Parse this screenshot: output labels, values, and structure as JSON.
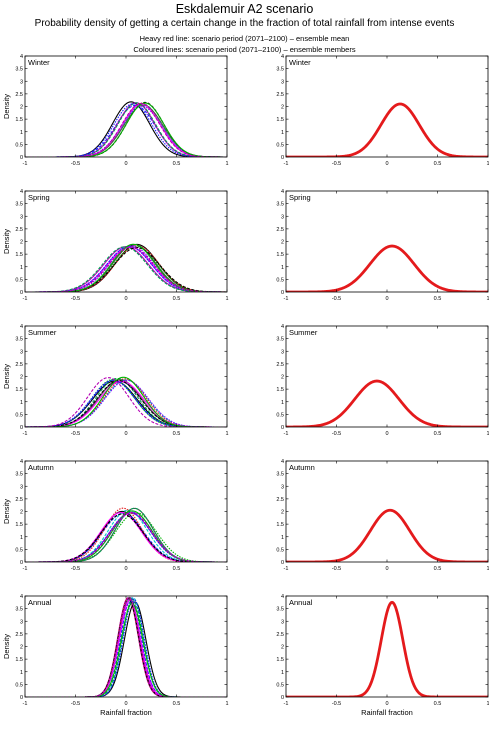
{
  "header": {
    "title": "Eskdalemuir A2 scenario",
    "subtitle": "Probability density of getting a certain change in the fraction of total rainfall from intense events",
    "note_mean": "Heavy red line: scenario period (2071–2100) – ensemble mean",
    "note_members": "Coloured lines: scenario period (2071–2100) – ensemble members"
  },
  "colors": {
    "mean": "#e41a1c",
    "members": [
      "#000000",
      "#1a1aff",
      "#00b400",
      "#b400b4",
      "#00c8c8",
      "#e41a1c",
      "#505050",
      "#00a050",
      "#7f00ff",
      "#ff00ff"
    ]
  },
  "chart_data": [
    {
      "type": "line",
      "panel": "ensemble-members",
      "season": "Winter",
      "ylabel": "Density",
      "xlabel": "",
      "xlim": [
        -1,
        1
      ],
      "ylim": [
        0,
        4
      ],
      "xticks": [
        "-1",
        "-0.5",
        "0",
        "0.5",
        "1"
      ],
      "yticks": [
        "0",
        "0.5",
        "1",
        "1.5",
        "2",
        "2.5",
        "3",
        "3.5",
        "4"
      ],
      "member_peak_x_range": [
        0.05,
        0.2
      ],
      "member_peak_density_range": [
        2.0,
        2.2
      ]
    },
    {
      "type": "line",
      "panel": "ensemble-mean",
      "season": "Winter",
      "xlabel": "",
      "xlim": [
        -1,
        1
      ],
      "ylim": [
        0,
        4
      ],
      "xticks": [
        "-1",
        "-0.5",
        "0",
        "0.5",
        "1"
      ],
      "yticks": [
        "0",
        "0.5",
        "1",
        "1.5",
        "2",
        "2.5",
        "3",
        "3.5",
        "4"
      ],
      "mean_peak_x": 0.13,
      "mean_peak_density": 2.1,
      "x_support": [
        -0.3,
        0.6
      ]
    },
    {
      "type": "line",
      "panel": "ensemble-members",
      "season": "Spring",
      "ylabel": "Density",
      "xlabel": "",
      "xlim": [
        -1,
        1
      ],
      "ylim": [
        0,
        4
      ],
      "xticks": [
        "-1",
        "-0.5",
        "0",
        "0.5",
        "1"
      ],
      "yticks": [
        "0",
        "0.5",
        "1",
        "1.5",
        "2",
        "2.5",
        "3",
        "3.5",
        "4"
      ],
      "member_peak_x_range": [
        -0.02,
        0.12
      ],
      "member_peak_density_range": [
        1.75,
        1.9
      ]
    },
    {
      "type": "line",
      "panel": "ensemble-mean",
      "season": "Spring",
      "xlabel": "",
      "xlim": [
        -1,
        1
      ],
      "ylim": [
        0,
        4
      ],
      "xticks": [
        "-1",
        "-0.5",
        "0",
        "0.5",
        "1"
      ],
      "yticks": [
        "0",
        "0.5",
        "1",
        "1.5",
        "2",
        "2.5",
        "3",
        "3.5",
        "4"
      ],
      "mean_peak_x": 0.05,
      "mean_peak_density": 1.82,
      "x_support": [
        -0.5,
        0.6
      ]
    },
    {
      "type": "line",
      "panel": "ensemble-members",
      "season": "Summer",
      "ylabel": "Density",
      "xlabel": "",
      "xlim": [
        -1,
        1
      ],
      "ylim": [
        0,
        4
      ],
      "xticks": [
        "-1",
        "-0.5",
        "0",
        "0.5",
        "1"
      ],
      "yticks": [
        "0",
        "0.5",
        "1",
        "1.5",
        "2",
        "2.5",
        "3",
        "3.5",
        "4"
      ],
      "member_peak_x_range": [
        -0.2,
        0.02
      ],
      "member_peak_density_range": [
        1.75,
        2.0
      ]
    },
    {
      "type": "line",
      "panel": "ensemble-mean",
      "season": "Summer",
      "xlabel": "",
      "xlim": [
        -1,
        1
      ],
      "ylim": [
        0,
        4
      ],
      "xticks": [
        "-1",
        "-0.5",
        "0",
        "0.5",
        "1"
      ],
      "yticks": [
        "0",
        "0.5",
        "1",
        "1.5",
        "2",
        "2.5",
        "3",
        "3.5",
        "4"
      ],
      "mean_peak_x": -0.1,
      "mean_peak_density": 1.82,
      "x_support": [
        -0.7,
        0.5
      ]
    },
    {
      "type": "line",
      "panel": "ensemble-members",
      "season": "Autumn",
      "ylabel": "Density",
      "xlabel": "",
      "xlim": [
        -1,
        1
      ],
      "ylim": [
        0,
        4
      ],
      "xticks": [
        "-1",
        "-0.5",
        "0",
        "0.5",
        "1"
      ],
      "yticks": [
        "0",
        "0.5",
        "1",
        "1.5",
        "2",
        "2.5",
        "3",
        "3.5",
        "4"
      ],
      "member_peak_x_range": [
        -0.05,
        0.1
      ],
      "member_peak_density_range": [
        1.9,
        2.15
      ]
    },
    {
      "type": "line",
      "panel": "ensemble-mean",
      "season": "Autumn",
      "xlabel": "",
      "xlim": [
        -1,
        1
      ],
      "ylim": [
        0,
        4
      ],
      "xticks": [
        "-1",
        "-0.5",
        "0",
        "0.5",
        "1"
      ],
      "yticks": [
        "0",
        "0.5",
        "1",
        "1.5",
        "2",
        "2.5",
        "3",
        "3.5",
        "4"
      ],
      "mean_peak_x": 0.03,
      "mean_peak_density": 2.05,
      "x_support": [
        -0.5,
        0.6
      ]
    },
    {
      "type": "line",
      "panel": "ensemble-members",
      "season": "Annual",
      "ylabel": "Density",
      "xlabel": "Rainfall fraction",
      "xlim": [
        -1,
        1
      ],
      "ylim": [
        0,
        4
      ],
      "xticks": [
        "-1",
        "-0.5",
        "0",
        "0.5",
        "1"
      ],
      "yticks": [
        "0",
        "0.5",
        "1",
        "1.5",
        "2",
        "2.5",
        "3",
        "3.5",
        "4"
      ],
      "member_peak_x_range": [
        0.02,
        0.1
      ],
      "member_peak_density_range": [
        3.7,
        3.95
      ]
    },
    {
      "type": "line",
      "panel": "ensemble-mean",
      "season": "Annual",
      "xlabel": "Rainfall fraction",
      "xlim": [
        -1,
        1
      ],
      "ylim": [
        0,
        4
      ],
      "xticks": [
        "-1",
        "-0.5",
        "0",
        "0.5",
        "1"
      ],
      "yticks": [
        "0",
        "0.5",
        "1",
        "1.5",
        "2",
        "2.5",
        "3",
        "3.5",
        "4"
      ],
      "mean_peak_x": 0.05,
      "mean_peak_density": 3.75,
      "x_support": [
        -0.25,
        0.35
      ]
    }
  ]
}
